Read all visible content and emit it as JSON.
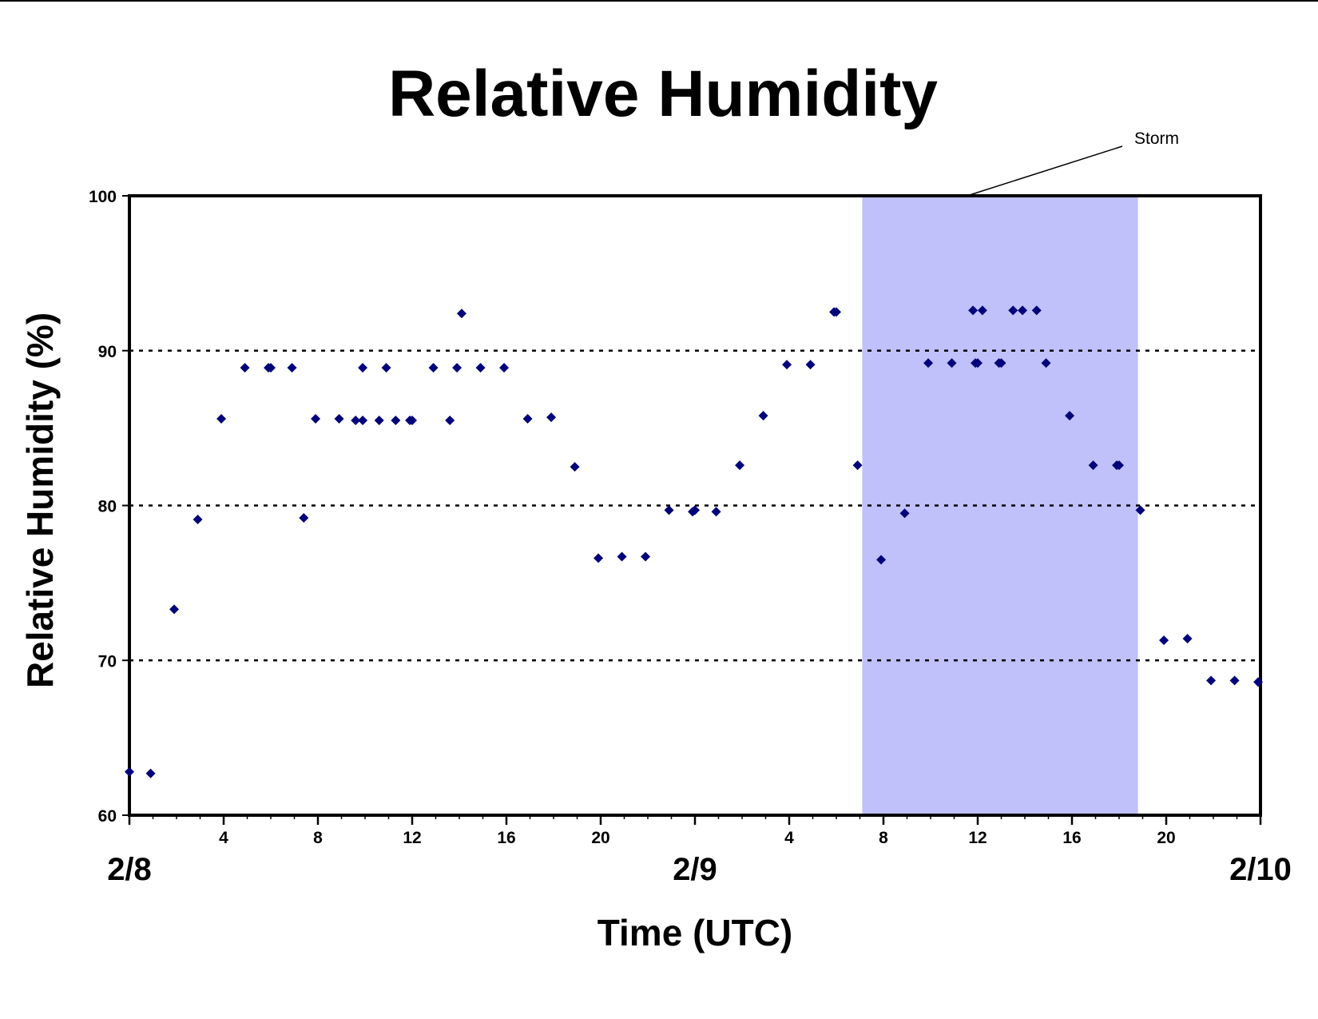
{
  "chart_data": {
    "type": "scatter",
    "title": "Relative Humidity",
    "xlabel": "Time (UTC)",
    "ylabel": "Relative Humidity (%)",
    "ylim": [
      60,
      100
    ],
    "yticks": [
      60,
      70,
      80,
      90,
      100
    ],
    "grid": "horizontal dotted at 70, 80, 90",
    "x_units": "hours since 2/8 00 UTC",
    "xlim": [
      0,
      48
    ],
    "hour_tick_labels": [
      {
        "x": 4,
        "label": "4"
      },
      {
        "x": 8,
        "label": "8"
      },
      {
        "x": 12,
        "label": "12"
      },
      {
        "x": 16,
        "label": "16"
      },
      {
        "x": 20,
        "label": "20"
      },
      {
        "x": 28,
        "label": "4"
      },
      {
        "x": 32,
        "label": "8"
      },
      {
        "x": 36,
        "label": "12"
      },
      {
        "x": 40,
        "label": "16"
      },
      {
        "x": 44,
        "label": "20"
      }
    ],
    "day_labels": [
      {
        "x": 0,
        "label": "2/8"
      },
      {
        "x": 24,
        "label": "2/9"
      },
      {
        "x": 48,
        "label": "2/10"
      }
    ],
    "marker_color": "#00007a",
    "storm": {
      "label": "Storm",
      "x_start": 31.1,
      "x_end": 42.8,
      "color": "#c0c0fb"
    },
    "series": [
      {
        "points": [
          {
            "x": 0,
            "y": 62.8
          },
          {
            "x": 0.9,
            "y": 62.7
          },
          {
            "x": 1.9,
            "y": 73.3
          },
          {
            "x": 2.9,
            "y": 79.1
          },
          {
            "x": 3.9,
            "y": 85.6
          },
          {
            "x": 4.9,
            "y": 88.9
          },
          {
            "x": 5.9,
            "y": 88.9
          },
          {
            "x": 6,
            "y": 88.9
          },
          {
            "x": 6.9,
            "y": 88.9
          },
          {
            "x": 7.4,
            "y": 79.2
          },
          {
            "x": 7.9,
            "y": 85.6
          },
          {
            "x": 8.9,
            "y": 85.6
          },
          {
            "x": 9.6,
            "y": 85.5
          },
          {
            "x": 9.9,
            "y": 88.9
          },
          {
            "x": 9.9,
            "y": 85.5
          },
          {
            "x": 10.6,
            "y": 85.5
          },
          {
            "x": 10.9,
            "y": 88.9
          },
          {
            "x": 11.3,
            "y": 85.5
          },
          {
            "x": 11.9,
            "y": 85.5
          },
          {
            "x": 12,
            "y": 85.5
          },
          {
            "x": 12.9,
            "y": 88.9
          },
          {
            "x": 13.6,
            "y": 85.5
          },
          {
            "x": 13.9,
            "y": 88.9
          },
          {
            "x": 14.1,
            "y": 92.4
          },
          {
            "x": 14.9,
            "y": 88.9
          },
          {
            "x": 15.9,
            "y": 88.9
          },
          {
            "x": 16.9,
            "y": 85.6
          },
          {
            "x": 17.9,
            "y": 85.7
          },
          {
            "x": 18.9,
            "y": 82.5
          },
          {
            "x": 19.9,
            "y": 76.6
          },
          {
            "x": 20.9,
            "y": 76.7
          },
          {
            "x": 21.9,
            "y": 76.7
          },
          {
            "x": 22.9,
            "y": 79.7
          },
          {
            "x": 23.9,
            "y": 79.6
          },
          {
            "x": 24,
            "y": 79.7
          },
          {
            "x": 24.9,
            "y": 79.6
          },
          {
            "x": 25.9,
            "y": 82.6
          },
          {
            "x": 26.9,
            "y": 85.8
          },
          {
            "x": 27.9,
            "y": 89.1
          },
          {
            "x": 28.9,
            "y": 89.1
          },
          {
            "x": 29.9,
            "y": 92.5
          },
          {
            "x": 30,
            "y": 92.5
          },
          {
            "x": 30.9,
            "y": 82.6
          },
          {
            "x": 31.9,
            "y": 76.5
          },
          {
            "x": 32.9,
            "y": 79.5
          },
          {
            "x": 33.9,
            "y": 89.2
          },
          {
            "x": 34.9,
            "y": 89.2
          },
          {
            "x": 35.8,
            "y": 92.6
          },
          {
            "x": 35.9,
            "y": 89.2
          },
          {
            "x": 36,
            "y": 89.2
          },
          {
            "x": 36.2,
            "y": 92.6
          },
          {
            "x": 36.9,
            "y": 89.2
          },
          {
            "x": 37,
            "y": 89.2
          },
          {
            "x": 37.5,
            "y": 92.6
          },
          {
            "x": 37.9,
            "y": 92.6
          },
          {
            "x": 38.5,
            "y": 92.6
          },
          {
            "x": 38.9,
            "y": 89.2
          },
          {
            "x": 39.9,
            "y": 85.8
          },
          {
            "x": 40.9,
            "y": 82.6
          },
          {
            "x": 41.9,
            "y": 82.6
          },
          {
            "x": 42,
            "y": 82.6
          },
          {
            "x": 42.9,
            "y": 79.7
          },
          {
            "x": 43.9,
            "y": 71.3
          },
          {
            "x": 44.9,
            "y": 71.4
          },
          {
            "x": 45.9,
            "y": 68.7
          },
          {
            "x": 46.9,
            "y": 68.7
          },
          {
            "x": 47.9,
            "y": 68.6
          }
        ]
      }
    ]
  }
}
